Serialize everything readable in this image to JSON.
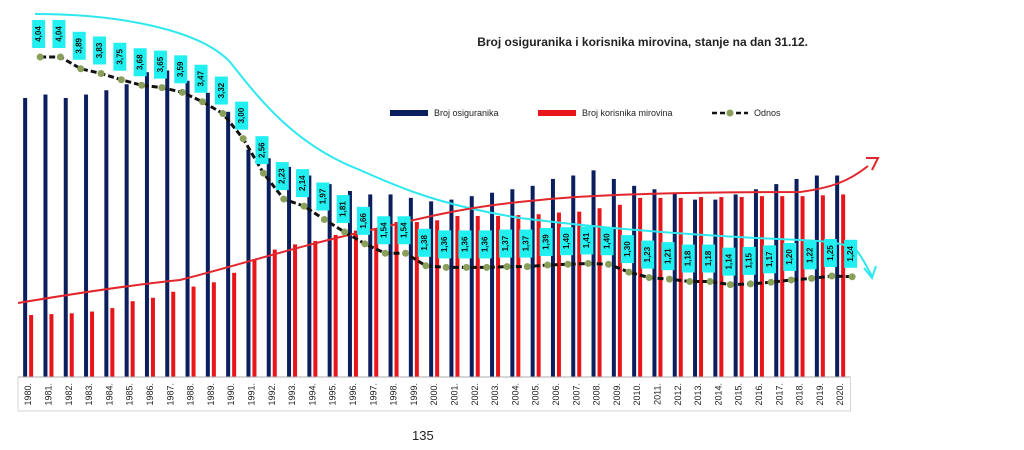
{
  "page_number": "135",
  "colors": {
    "insured": "#0b1f5e",
    "pensioners": "#e8151b",
    "ratio_line": "#111111",
    "ratio_marker": "#8aa05a",
    "label_box": "#22f0f0",
    "annotation_cyan": "#2ee8f0",
    "annotation_red": "#e3262c"
  },
  "chart_data": {
    "type": "bar",
    "title": "Broj osiguranika i korisnika mirovina, stanje na dan 31.12.",
    "categories": [
      "1980.",
      "1981.",
      "1982.",
      "1983.",
      "1984.",
      "1985.",
      "1986.",
      "1987.",
      "1988.",
      "1989.",
      "1990.",
      "1991.",
      "1992.",
      "1993.",
      "1994.",
      "1995.",
      "1996.",
      "1997.",
      "1998.",
      "1999.",
      "2000.",
      "2001.",
      "2002.",
      "2003.",
      "2004.",
      "2005.",
      "2006.",
      "2007.",
      "2008.",
      "2009.",
      "2010.",
      "2011.",
      "2012.",
      "2013.",
      "2014.",
      "2015.",
      "2016.",
      "2017.",
      "2018.",
      "2019.",
      "2020."
    ],
    "series": [
      {
        "name": "Broj osiguranika",
        "values": [
          1620,
          1640,
          1620,
          1640,
          1665,
          1700,
          1770,
          1780,
          1720,
          1650,
          1540,
          1320,
          1270,
          1220,
          1170,
          1120,
          1080,
          1060,
          1060,
          1040,
          1020,
          1030,
          1050,
          1070,
          1090,
          1110,
          1150,
          1170,
          1200,
          1150,
          1110,
          1090,
          1070,
          1030,
          1030,
          1060,
          1090,
          1120,
          1150,
          1170,
          1170
        ]
      },
      {
        "name": "Broj korisnika mirovina",
        "values": [
          360,
          365,
          370,
          380,
          400,
          440,
          460,
          495,
          525,
          550,
          605,
          685,
          740,
          770,
          790,
          825,
          850,
          865,
          900,
          900,
          910,
          935,
          935,
          935,
          940,
          945,
          955,
          960,
          980,
          1000,
          1040,
          1040,
          1040,
          1045,
          1045,
          1045,
          1050,
          1050,
          1050,
          1055,
          1060
        ]
      },
      {
        "name": "Odnos",
        "values": [
          4.04,
          4.04,
          3.89,
          3.83,
          3.75,
          3.68,
          3.65,
          3.59,
          3.47,
          3.32,
          3.0,
          2.56,
          2.23,
          2.14,
          1.97,
          1.81,
          1.66,
          1.54,
          1.54,
          1.38,
          1.36,
          1.36,
          1.36,
          1.37,
          1.37,
          1.39,
          1.4,
          1.41,
          1.4,
          1.3,
          1.23,
          1.21,
          1.18,
          1.18,
          1.14,
          1.15,
          1.17,
          1.2,
          1.22,
          1.25,
          1.24
        ],
        "labels": [
          "4,04",
          "4,04",
          "3,89",
          "3,83",
          "3,75",
          "3,68",
          "3,65",
          "3,59",
          "3,47",
          "3,32",
          "3,00",
          "2,56",
          "2,23",
          "2,14",
          "1,97",
          "1,81",
          "1,66",
          "1,54",
          "1,54",
          "1,38",
          "1,36",
          "1,36",
          "1,36",
          "1,37",
          "1,37",
          "1,39",
          "1,40",
          "1,41",
          "1,40",
          "1,30",
          "1,23",
          "1,21",
          "1,18",
          "1,18",
          "1,14",
          "1,15",
          "1,17",
          "1,20",
          "1,22",
          "1,25",
          "1,24"
        ]
      }
    ],
    "legend": [
      "Broj osiguranika",
      "Broj korisnika mirovina",
      "Odnos"
    ],
    "legend_position": "top-right",
    "grid": false
  }
}
